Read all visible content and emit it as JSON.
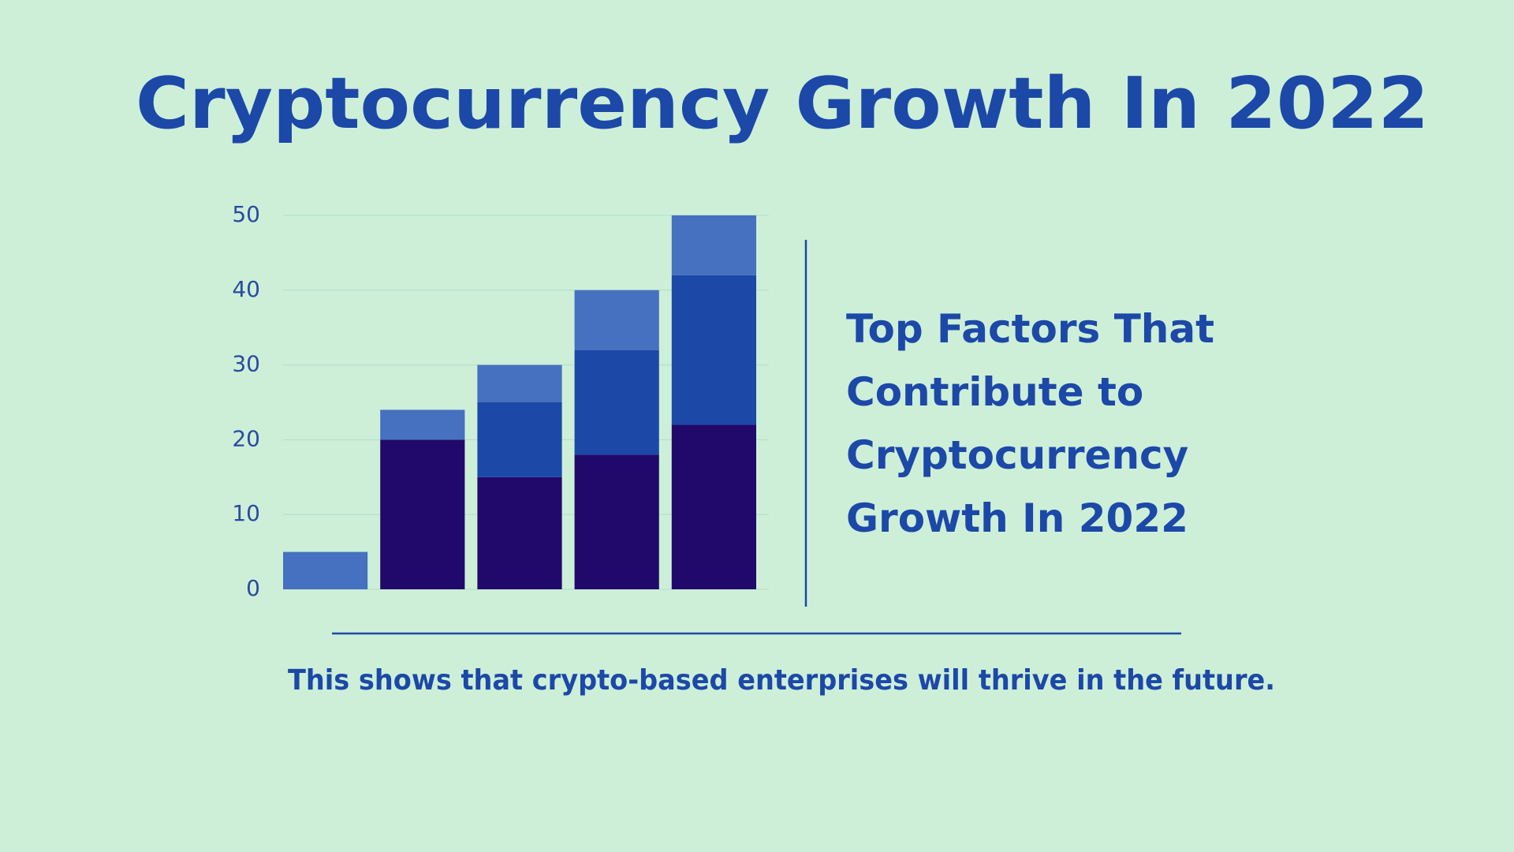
{
  "chart_data": {
    "type": "stacked-bar",
    "title": "Cryptocurrency Growth In 2022",
    "annotation": [
      "Top Factors That",
      "Contribute to",
      "Cryptocurrency",
      "Growth In 2022"
    ],
    "caption": "This shows that crypto-based enterprises will thrive in the future.",
    "categories": [
      null,
      null,
      null,
      null,
      null
    ],
    "series": [
      {
        "color": "#21096b",
        "values": [
          0,
          20,
          15,
          18,
          22
        ]
      },
      {
        "color": "#1c48a8",
        "values": [
          0,
          0,
          10,
          14,
          20
        ]
      },
      {
        "color": "#4670c0",
        "values": [
          5,
          4,
          5,
          8,
          8
        ]
      }
    ],
    "ylim": [
      0,
      50
    ],
    "yticks": [
      0,
      10,
      20,
      30,
      40,
      50
    ],
    "grid": true
  }
}
